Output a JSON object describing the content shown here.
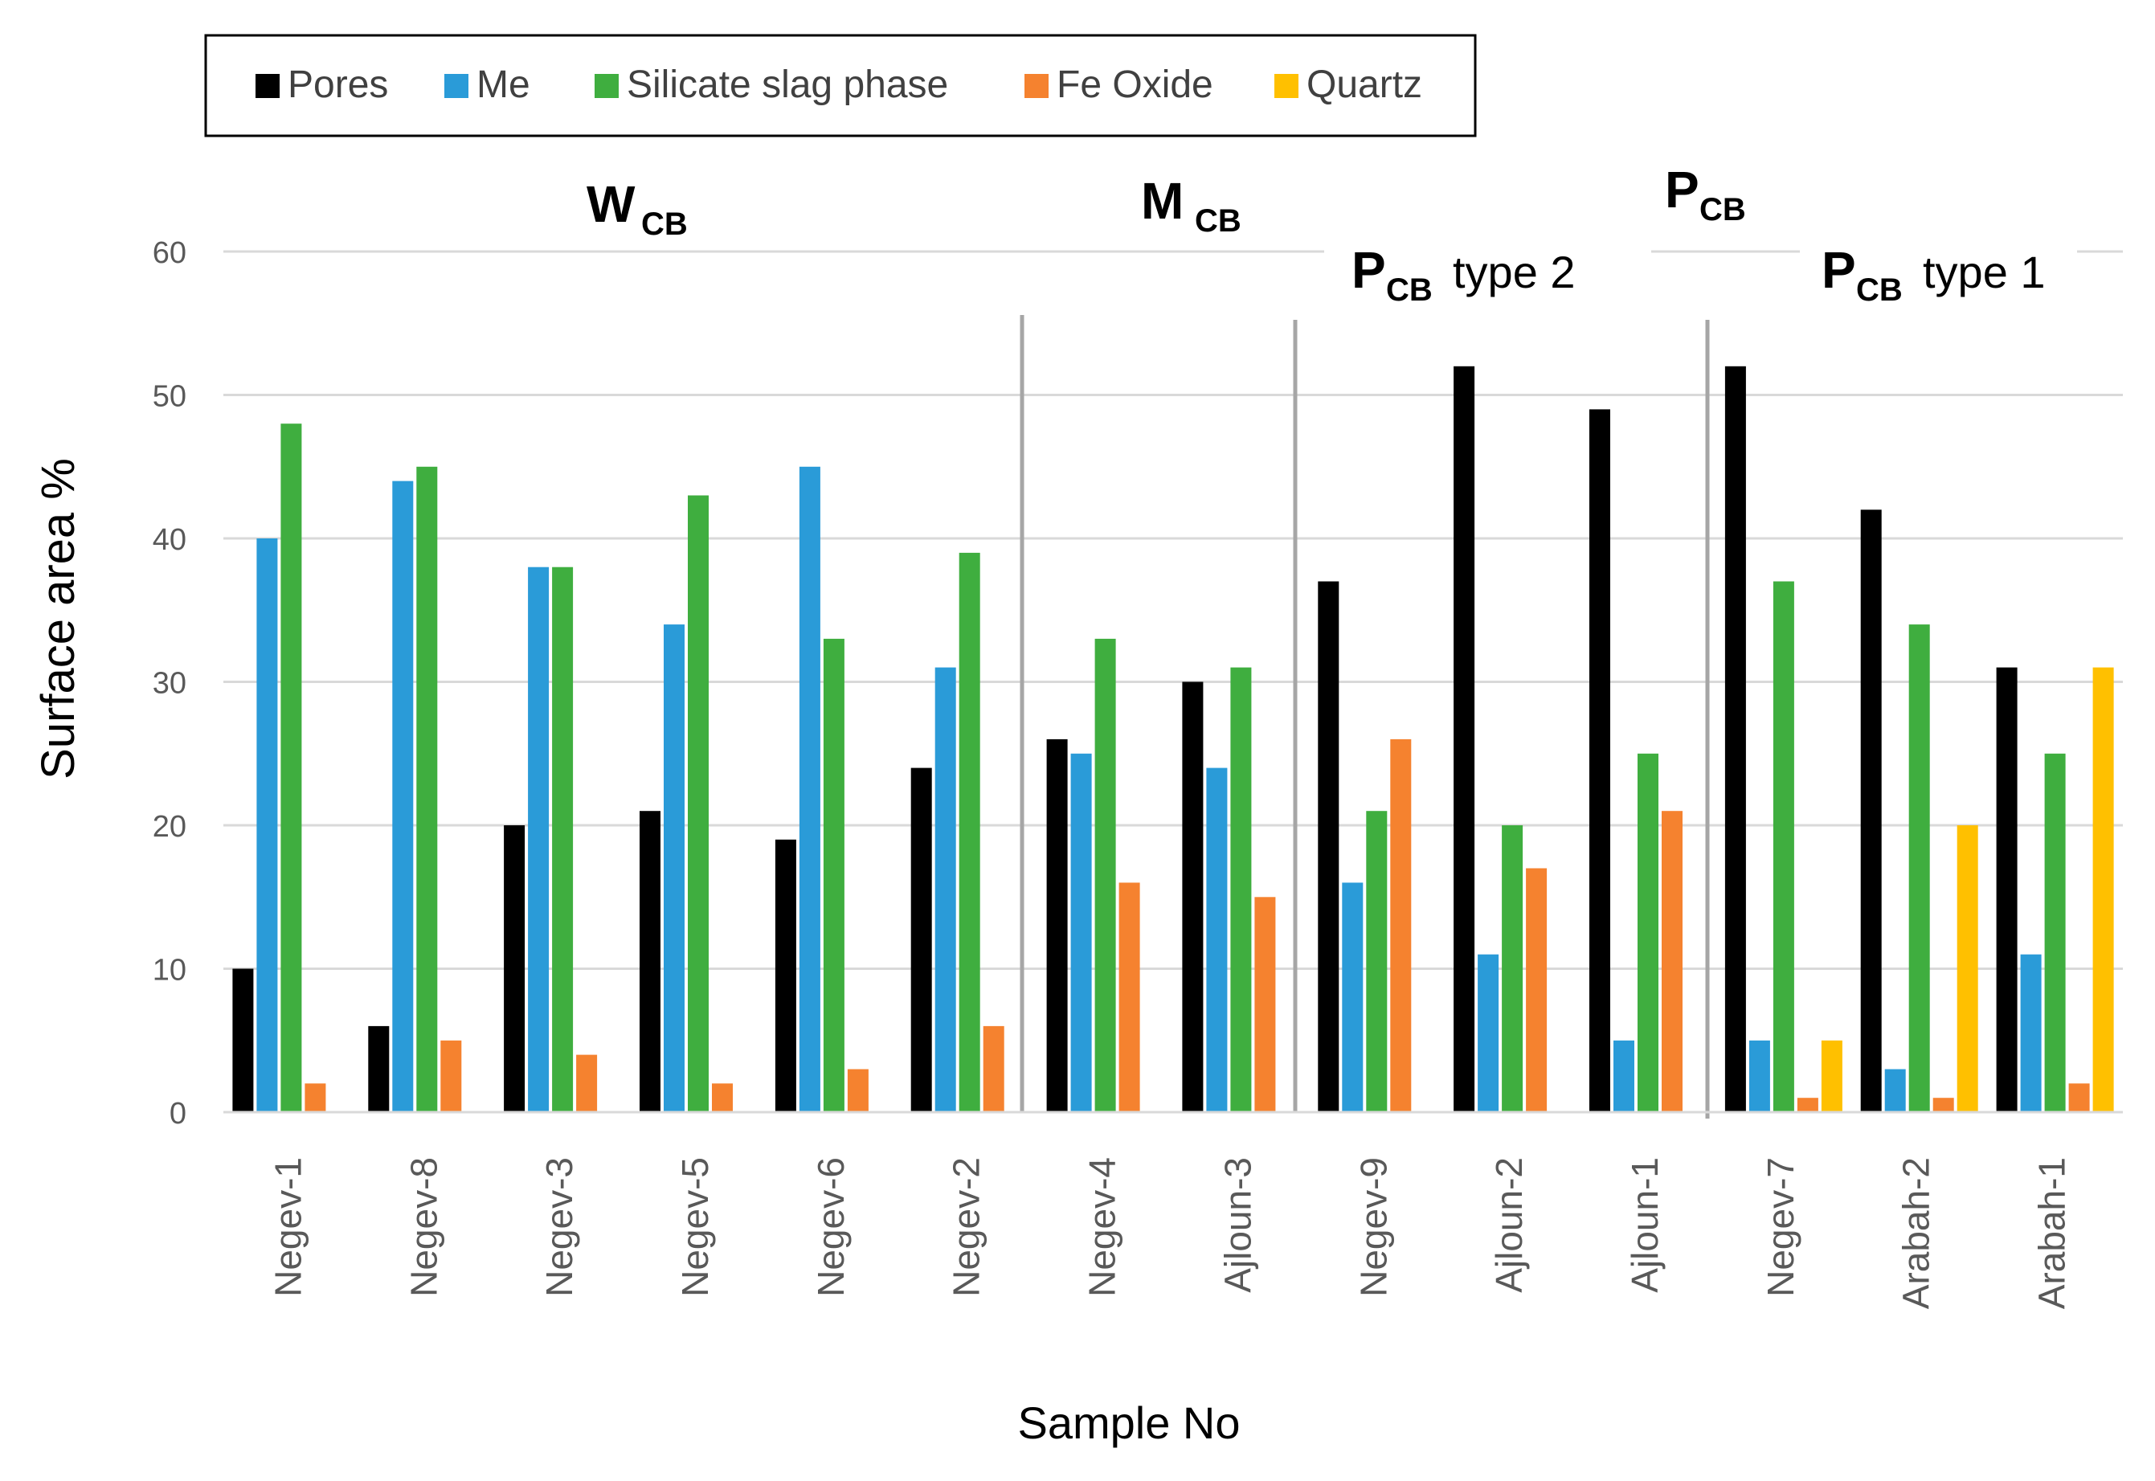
{
  "chart_data": {
    "type": "bar",
    "title": "",
    "xlabel": "Sample No",
    "ylabel": "Surface area %",
    "ylim": [
      0,
      60
    ],
    "yticks": [
      "0",
      "10",
      "20",
      "30",
      "40",
      "50",
      "60"
    ],
    "grid": true,
    "legend_position": "top-left",
    "categories": [
      "Negev-1",
      "Negev-8",
      "Negev-3",
      "Negev-5",
      "Negev-6",
      "Negev-2",
      "Negev-4",
      "Ajloun-3",
      "Negev-9",
      "Ajloun-2",
      "Ajloun-1",
      "Negev-7",
      "Arabah-2",
      "Arabah-1"
    ],
    "series": [
      {
        "name": "Pores",
        "color": "#000000",
        "values": [
          10,
          6,
          20,
          21,
          19,
          24,
          26,
          30,
          37,
          52,
          49,
          52,
          42,
          31
        ]
      },
      {
        "name": "Me",
        "color": "#2A9BD8",
        "values": [
          40,
          44,
          38,
          34,
          45,
          31,
          25,
          24,
          16,
          11,
          5,
          5,
          3,
          11
        ]
      },
      {
        "name": "Silicate slag phase",
        "color": "#3FAE3F",
        "values": [
          48,
          45,
          38,
          43,
          33,
          39,
          33,
          31,
          21,
          20,
          25,
          37,
          34,
          25
        ]
      },
      {
        "name": "Fe Oxide",
        "color": "#F5822F",
        "values": [
          2,
          5,
          4,
          2,
          3,
          6,
          16,
          15,
          26,
          17,
          21,
          1,
          1,
          2
        ]
      },
      {
        "name": "Quartz",
        "color": "#FFC000",
        "values": [
          0,
          0,
          0,
          0,
          0,
          0,
          0,
          0,
          0,
          0,
          0,
          5,
          20,
          31
        ]
      }
    ],
    "groups": [
      {
        "main": "W",
        "sub": "CB",
        "suffix": ""
      },
      {
        "main": "M",
        "sub": "CB",
        "suffix": ""
      },
      {
        "main": "P",
        "sub": "CB",
        "suffix": ""
      },
      {
        "main": "P",
        "sub": "CB",
        "suffix": "type 2"
      },
      {
        "main": "P",
        "sub": "CB",
        "suffix": "type 1"
      }
    ]
  }
}
